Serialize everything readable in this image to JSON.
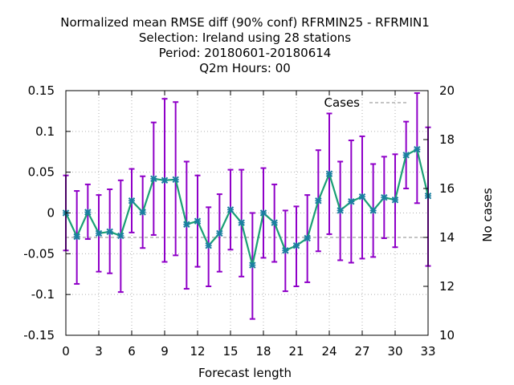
{
  "chart_data": {
    "type": "line",
    "title_lines": [
      "Normalized mean RMSE diff (90% conf) RFRMIN25 - RFRMIN1",
      "Selection: Ireland using    28 stations",
      "Period: 20180601-20180614",
      "Q2m   Hours:  00"
    ],
    "xlabel": "Forecast length",
    "ylabel": "",
    "y2label": "No cases",
    "xlim": [
      0,
      33
    ],
    "ylim": [
      -0.15,
      0.15
    ],
    "y2lim": [
      10,
      20
    ],
    "grid": true,
    "legend_position": "top-right",
    "x_ticks": [
      "0",
      "3",
      "6",
      "9",
      "12",
      "15",
      "18",
      "21",
      "24",
      "27",
      "30",
      "33"
    ],
    "y_ticks": [
      "0.15",
      "0.1",
      "0.05",
      "0",
      "-0.05",
      "-0.1",
      "-0.15"
    ],
    "y2_ticks": [
      "20",
      "18",
      "16",
      "14",
      "12",
      "10"
    ],
    "x_tick_values": [
      0,
      3,
      6,
      9,
      12,
      15,
      18,
      21,
      24,
      27,
      30,
      33
    ],
    "y_tick_values": [
      0.15,
      0.1,
      0.05,
      0,
      -0.05,
      -0.1,
      -0.15
    ],
    "y2_tick_values": [
      20,
      18,
      16,
      14,
      12,
      10
    ],
    "series": [
      {
        "name": "",
        "color": "#1a9f75",
        "marker_color": "#1a7fa0",
        "error_color": "#8f00c8",
        "x": [
          0,
          1,
          2,
          3,
          4,
          5,
          6,
          7,
          8,
          9,
          10,
          11,
          12,
          13,
          14,
          15,
          16,
          17,
          18,
          19,
          20,
          21,
          22,
          23,
          24,
          25,
          26,
          27,
          28,
          29,
          30,
          31,
          32,
          33
        ],
        "y": [
          0.0,
          -0.029,
          0.001,
          -0.025,
          -0.023,
          -0.028,
          0.015,
          0.001,
          0.042,
          0.04,
          0.041,
          -0.014,
          -0.01,
          -0.04,
          -0.025,
          0.004,
          -0.012,
          -0.064,
          0.0,
          -0.012,
          -0.046,
          -0.04,
          -0.031,
          0.015,
          0.048,
          0.003,
          0.014,
          0.02,
          0.003,
          0.019,
          0.016,
          0.071,
          0.078,
          0.021
        ],
        "y_low": [
          -0.046,
          -0.087,
          -0.032,
          -0.072,
          -0.074,
          -0.097,
          -0.024,
          -0.043,
          -0.027,
          -0.06,
          -0.052,
          -0.093,
          -0.066,
          -0.09,
          -0.072,
          -0.045,
          -0.078,
          -0.13,
          -0.055,
          -0.06,
          -0.096,
          -0.09,
          -0.085,
          -0.047,
          -0.026,
          -0.058,
          -0.061,
          -0.056,
          -0.054,
          -0.031,
          -0.042,
          0.03,
          0.012,
          -0.065
        ],
        "y_high": [
          0.046,
          0.027,
          0.035,
          0.022,
          0.029,
          0.04,
          0.054,
          0.045,
          0.111,
          0.14,
          0.136,
          0.063,
          0.046,
          0.007,
          0.023,
          0.053,
          0.053,
          0.0,
          0.055,
          0.035,
          0.003,
          0.008,
          0.022,
          0.077,
          0.122,
          0.063,
          0.089,
          0.094,
          0.06,
          0.069,
          0.072,
          0.112,
          0.147,
          0.105
        ]
      },
      {
        "name": "Cases",
        "axis": "y2",
        "color": "#a0a0a0",
        "dashed": true,
        "x": [
          0,
          33
        ],
        "y": [
          14,
          14
        ]
      }
    ]
  }
}
